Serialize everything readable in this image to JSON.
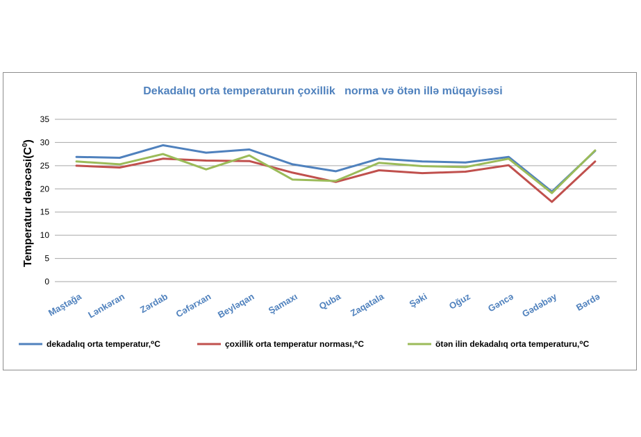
{
  "chart_data": {
    "type": "line",
    "title": "Dekadalıq orta temperaturun çoxillik   norma və ötən illə müqayisəsi",
    "ylabel": "Temperatur dərəcəsi(C",
    "ylabel_sup": "0",
    "ylabel_close": ")",
    "xlabel": "",
    "ylim": [
      0,
      35
    ],
    "yticks": [
      0,
      5,
      10,
      15,
      20,
      25,
      30,
      35
    ],
    "grid": true,
    "legend_position": "bottom",
    "categories": [
      "Maştağa",
      "Lənkəran",
      "Zərdab",
      "Cəfərxan",
      "Beyləqan",
      "Şamaxı",
      "Quba",
      "Zaqatala",
      "Şəki",
      "Oğuz",
      "Gəncə",
      "Gədəbəy",
      "Bərdə"
    ],
    "series": [
      {
        "name": "dekadalıq orta temperatur,⁰C",
        "color": "#4f81bd",
        "values": [
          26.9,
          26.7,
          29.4,
          27.8,
          28.5,
          25.3,
          23.8,
          26.5,
          25.9,
          25.7,
          26.9,
          19.4,
          28.2
        ]
      },
      {
        "name": "çoxillik orta temperatur norması,⁰C",
        "color": "#c0504d",
        "values": [
          25.0,
          24.6,
          26.5,
          26.1,
          26.0,
          23.5,
          21.5,
          24.0,
          23.4,
          23.7,
          25.1,
          17.2,
          25.9
        ]
      },
      {
        "name": "ötən ilin dekadalıq orta temperaturu,⁰C",
        "color": "#9bbb59",
        "values": [
          25.9,
          25.3,
          27.5,
          24.2,
          27.2,
          22.0,
          21.7,
          25.6,
          24.9,
          24.7,
          26.5,
          19.1,
          28.3
        ]
      }
    ]
  }
}
